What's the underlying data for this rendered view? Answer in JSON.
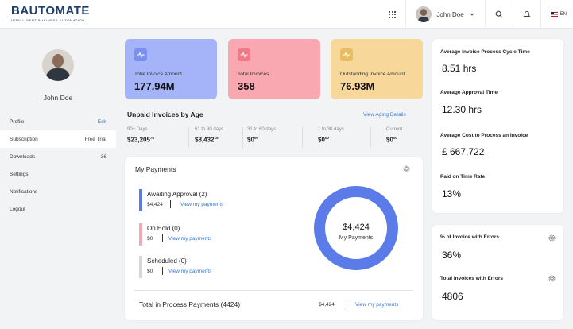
{
  "brand": {
    "name": "BAUTOMATE",
    "tagline": "INTELLIGENT BUSINESS AUTOMATION"
  },
  "header": {
    "user_name": "John Doe",
    "language": "EN",
    "icons": [
      "apps-grid-icon",
      "search-icon",
      "notification-bell-icon",
      "flag-us-icon"
    ]
  },
  "sidebar": {
    "user_name": "John Doe",
    "items": [
      {
        "label": "Profile",
        "right": "Edit"
      },
      {
        "label": "Subscription",
        "right": "Free Trial"
      },
      {
        "label": "Downloads",
        "right": "36"
      },
      {
        "label": "Settings",
        "right": ""
      },
      {
        "label": "Notifications",
        "right": ""
      },
      {
        "label": "Logout",
        "right": ""
      }
    ]
  },
  "kpis": [
    {
      "label": "Total Invoice Amount",
      "value": "177.94M",
      "color": "#a5b4f9",
      "icon_color": "#7b8ff0"
    },
    {
      "label": "Total Invoices",
      "value": "358",
      "color": "#f9a7b0",
      "icon_color": "#f07a88"
    },
    {
      "label": "Outstanding Invoice Amount",
      "value": "76.93M",
      "color": "#f7d79a",
      "icon_color": "#e8bd62"
    }
  ],
  "unpaid": {
    "title": "Unpaid Invoices by Age",
    "link": "View Aging Details",
    "columns": [
      {
        "label": "90+ Days",
        "value": "$23,205",
        "cents": "74"
      },
      {
        "label": "61 to 90 days",
        "value": "$8,432",
        "cents": "15"
      },
      {
        "label": "31 to 60 days",
        "value": "$0",
        "cents": "00"
      },
      {
        "label": "1 to 30 days",
        "value": "$0",
        "cents": "00"
      },
      {
        "label": "Current",
        "value": "$0",
        "cents": "00"
      }
    ]
  },
  "payments": {
    "title": "My Payments",
    "items": [
      {
        "title": "Awaiting Approval (2)",
        "amount": "$4,424",
        "link": "View my payments",
        "color": "#5b7be9"
      },
      {
        "title": "On Hold (0)",
        "amount": "$0",
        "link": "View my payments",
        "color": "#f5aab2"
      },
      {
        "title": "Scheduled (0)",
        "amount": "$0",
        "link": "View my payments",
        "color": "#d6d6d6"
      }
    ],
    "donut": {
      "value": "$4,424",
      "label": "My Payments",
      "color": "#5b7be9"
    },
    "total_label": "Total in Process Payments (4424)",
    "total_amount": "$4,424",
    "total_link": "View my payments"
  },
  "metrics": [
    {
      "label": "Average Invoice Process Cycle Time",
      "value": "8.51 hrs"
    },
    {
      "label": "Average Approval Time",
      "value": "12.30 hrs"
    },
    {
      "label": "Average Cost to Process an Invoice",
      "value": "£ 667,722"
    },
    {
      "label": "Paid on Time Rate",
      "value": "13%"
    }
  ],
  "errors": [
    {
      "label": "% of Invoice with Errors",
      "value": "36%"
    },
    {
      "label": "Total Invoices with Errors",
      "value": "4806"
    }
  ]
}
